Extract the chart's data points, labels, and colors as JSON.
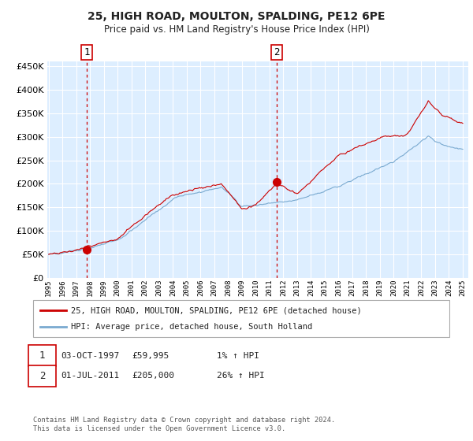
{
  "title": "25, HIGH ROAD, MOULTON, SPALDING, PE12 6PE",
  "subtitle": "Price paid vs. HM Land Registry's House Price Index (HPI)",
  "legend_line1": "25, HIGH ROAD, MOULTON, SPALDING, PE12 6PE (detached house)",
  "legend_line2": "HPI: Average price, detached house, South Holland",
  "annotation1_date": "03-OCT-1997",
  "annotation1_price": "£59,995",
  "annotation1_hpi": "1% ↑ HPI",
  "annotation2_date": "01-JUL-2011",
  "annotation2_price": "£205,000",
  "annotation2_hpi": "26% ↑ HPI",
  "footer": "Contains HM Land Registry data © Crown copyright and database right 2024.\nThis data is licensed under the Open Government Licence v3.0.",
  "hpi_color": "#7aaad0",
  "price_color": "#cc0000",
  "dot_color": "#cc0000",
  "vline_color": "#cc0000",
  "plot_bg": "#ddeeff",
  "grid_color": "#ffffff",
  "fig_bg": "#ffffff",
  "ylim": [
    0,
    460000
  ],
  "yticks": [
    0,
    50000,
    100000,
    150000,
    200000,
    250000,
    300000,
    350000,
    400000,
    450000
  ],
  "xlim_start": 1994.9,
  "xlim_end": 2025.4,
  "sale1_x": 1997.75,
  "sale1_y": 59995,
  "sale2_x": 2011.5,
  "sale2_y": 205000
}
